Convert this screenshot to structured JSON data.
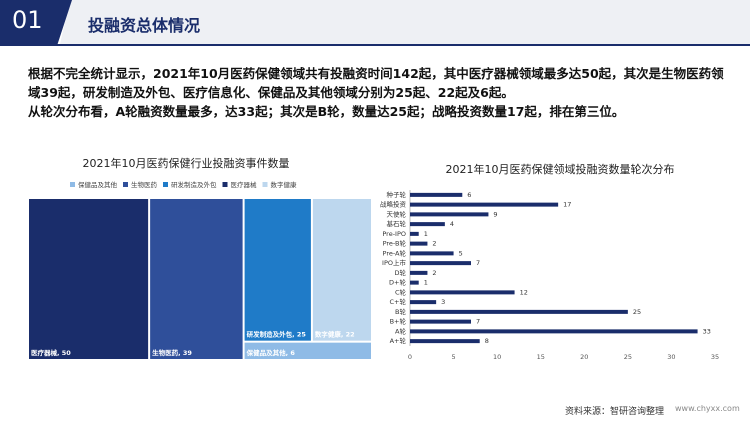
{
  "header": {
    "number": "01",
    "title": "投融资总体情况"
  },
  "paragraphs": [
    "根据不完全统计显示，2021年10月医药保健领域共有投融资时间142起，其中医疗器械领域最多达50起，其次是生物医药领域39起，研发制造及外包、医疗信息化、保健品及其他领域分别为25起、22起及6起。",
    "从轮次分布看，A轮融资数量最多，达33起；其次是B轮，数量达25起；战略投资数量17起，排在第三位。"
  ],
  "footer": {
    "source": "资料来源：智研咨询整理",
    "site": "www.chyxx.com"
  },
  "chart_data": [
    {
      "type": "treemap",
      "title": "2021年10月医药保健行业投融资事件数量",
      "categories": [
        "保健品及其他",
        "生物医药",
        "研发制造及外包",
        "医疗器械",
        "数字健康"
      ],
      "values": [
        6,
        39,
        25,
        50,
        22
      ],
      "value_labels": [
        "保健品及其他, 6",
        "生物医药, 39",
        "研发制造及外包, 25",
        "医疗器械, 50",
        "数字健康, 22"
      ],
      "colors": [
        "#8fbbe6",
        "#2f4f9a",
        "#1f7bc8",
        "#1a2d6b",
        "#bdd7ee"
      ]
    },
    {
      "type": "bar",
      "orientation": "horizontal",
      "title": "2021年10月医药保健领域投融资数量轮次分布",
      "categories": [
        "种子轮",
        "战略投资",
        "天使轮",
        "基石轮",
        "Pre-IPO",
        "Pre-B轮",
        "Pre-A轮",
        "IPO上市",
        "D轮",
        "D+轮",
        "C轮",
        "C+轮",
        "B轮",
        "B+轮",
        "A轮",
        "A+轮"
      ],
      "values": [
        6,
        17,
        9,
        4,
        1,
        2,
        5,
        7,
        2,
        1,
        12,
        3,
        25,
        7,
        33,
        8
      ],
      "color": "#1a2d6b",
      "xlim": [
        0,
        35
      ],
      "xticks": [
        0,
        5,
        10,
        15,
        20,
        25,
        30,
        35
      ],
      "grid": false
    }
  ]
}
